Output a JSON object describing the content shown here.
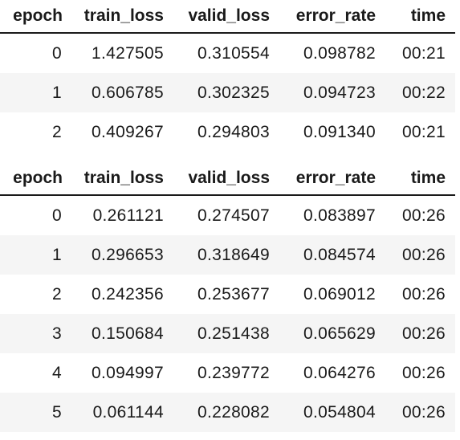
{
  "tables": [
    {
      "columns": [
        "epoch",
        "train_loss",
        "valid_loss",
        "error_rate",
        "time"
      ],
      "rows": [
        [
          "0",
          "1.427505",
          "0.310554",
          "0.098782",
          "00:21"
        ],
        [
          "1",
          "0.606785",
          "0.302325",
          "0.094723",
          "00:22"
        ],
        [
          "2",
          "0.409267",
          "0.294803",
          "0.091340",
          "00:21"
        ]
      ]
    },
    {
      "columns": [
        "epoch",
        "train_loss",
        "valid_loss",
        "error_rate",
        "time"
      ],
      "rows": [
        [
          "0",
          "0.261121",
          "0.274507",
          "0.083897",
          "00:26"
        ],
        [
          "1",
          "0.296653",
          "0.318649",
          "0.084574",
          "00:26"
        ],
        [
          "2",
          "0.242356",
          "0.253677",
          "0.069012",
          "00:26"
        ],
        [
          "3",
          "0.150684",
          "0.251438",
          "0.065629",
          "00:26"
        ],
        [
          "4",
          "0.094997",
          "0.239772",
          "0.064276",
          "00:26"
        ],
        [
          "5",
          "0.061144",
          "0.228082",
          "0.054804",
          "00:26"
        ]
      ]
    }
  ],
  "colors": {
    "striped_row_background": "#f5f5f5",
    "header_rule": "#1a1a1a",
    "text": "#1a1a1a"
  }
}
